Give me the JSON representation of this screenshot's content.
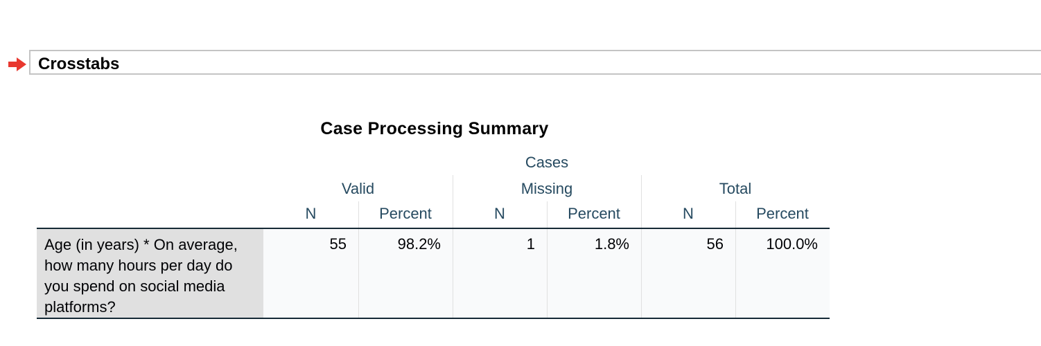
{
  "section": {
    "title": "Crosstabs",
    "arrow_icon": "red-right-arrow-icon",
    "arrow_color": "#e8382f"
  },
  "table": {
    "title": "Case Processing Summary",
    "spanner": "Cases",
    "groups": [
      "Valid",
      "Missing",
      "Total"
    ],
    "columns": [
      "N",
      "Percent",
      "N",
      "Percent",
      "N",
      "Percent"
    ],
    "rows": [
      {
        "label": "Age (in years) * On average, how many hours per day do you spend on social media platforms?",
        "values": [
          "55",
          "98.2%",
          "1",
          "1.8%",
          "56",
          "100.0%"
        ]
      }
    ]
  },
  "colors": {
    "header_text": "#264a60",
    "body_text": "#010205",
    "row_label_bg": "#e0e0e0",
    "data_bg": "#f9fafb",
    "rule": "#152935"
  }
}
